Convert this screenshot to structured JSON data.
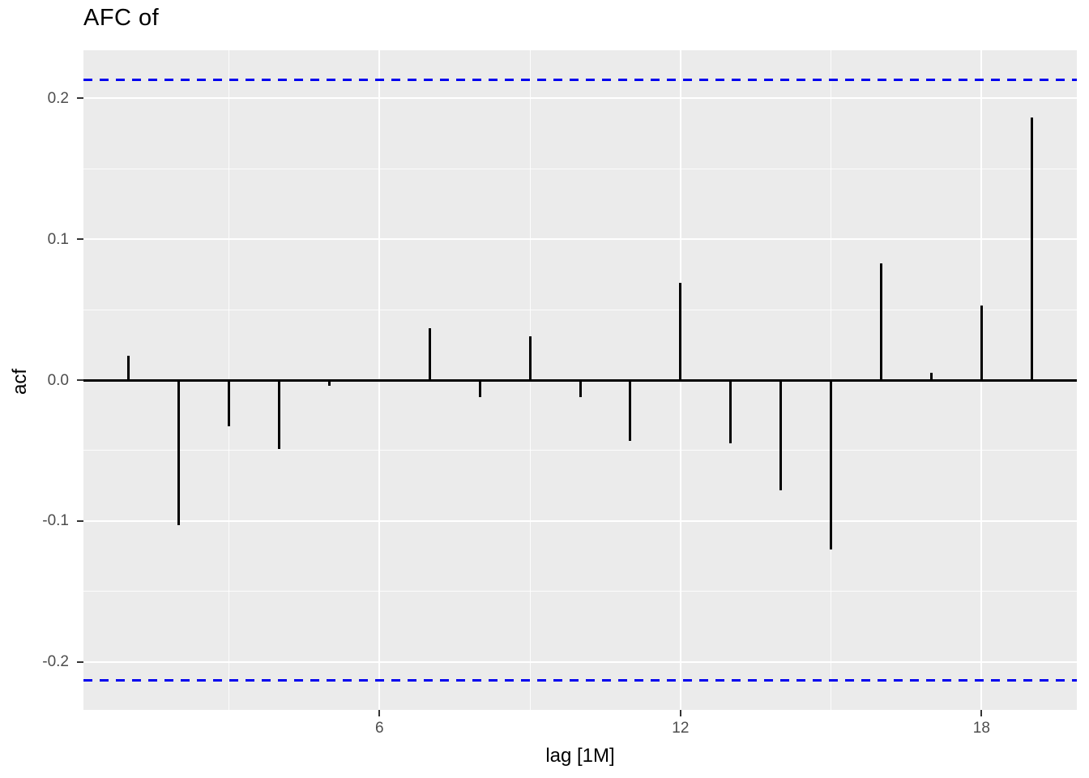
{
  "chart_data": {
    "type": "bar",
    "variant": "acf-lollipop",
    "title": "AFC of",
    "xlabel": "lag [1M]",
    "ylabel": "acf",
    "x": [
      1,
      2,
      3,
      4,
      5,
      6,
      7,
      8,
      9,
      10,
      11,
      12,
      13,
      14,
      15,
      16,
      17,
      18,
      19
    ],
    "values": [
      0.017,
      -0.103,
      -0.033,
      -0.049,
      -0.004,
      0.0,
      0.037,
      -0.012,
      0.031,
      -0.012,
      -0.043,
      0.069,
      -0.045,
      -0.078,
      -0.12,
      0.083,
      0.005,
      0.053,
      0.186
    ],
    "confidence_bounds": {
      "upper": 0.213,
      "lower": -0.213
    },
    "xlim": [
      0.1,
      19.9
    ],
    "ylim": [
      -0.234,
      0.234
    ],
    "x_major_ticks": [
      6,
      12,
      18
    ],
    "x_major_tick_labels": [
      "6",
      "12",
      "18"
    ],
    "x_minor_gridlines": [
      3,
      9,
      15
    ],
    "y_major_ticks": [
      -0.2,
      -0.1,
      0.0,
      0.1,
      0.2
    ],
    "y_major_tick_labels": [
      "-0.2",
      "-0.1",
      "0.0",
      "0.1",
      "0.2"
    ],
    "y_minor_gridlines": [
      -0.15,
      -0.05,
      0.05,
      0.15
    ],
    "grid": "major-and-minor white on gray panel",
    "legend": "none",
    "colors": {
      "panel_background": "#EBEBEB",
      "gridline": "#FFFFFF",
      "bar": "#000000",
      "zero_line": "#000000",
      "confidence_line": "#0000EE",
      "tick_label": "#4D4D4D",
      "tick_mark": "#333333",
      "title_text": "#000000"
    }
  }
}
